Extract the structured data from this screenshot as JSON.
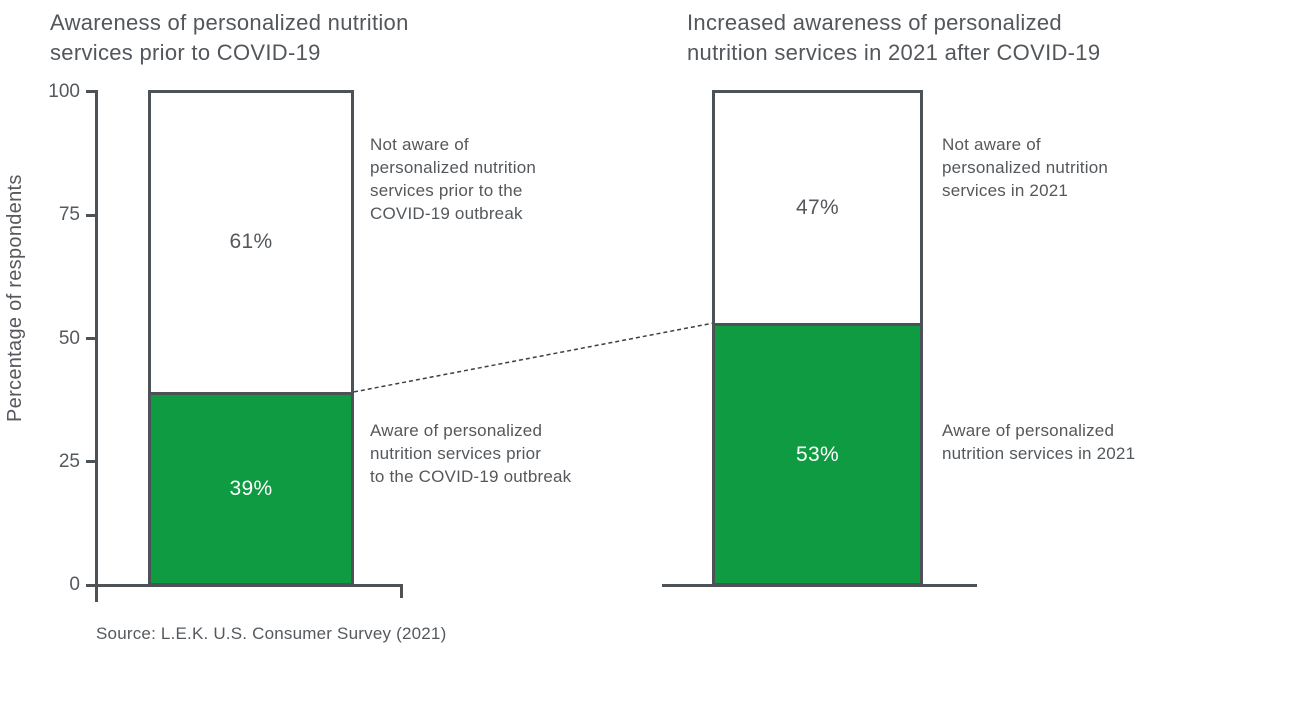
{
  "colors": {
    "aware_green": "#0f9b41",
    "bar_outline": "#4d5257",
    "text_gray": "#54585c",
    "not_aware_white": "#ffffff",
    "connector": "#3c3f42"
  },
  "y_axis": {
    "label": "Percentage of respondents",
    "ticks": [
      "100",
      "75",
      "50",
      "25",
      "0"
    ]
  },
  "left_chart": {
    "title_lines": [
      "Awareness of personalized nutrition",
      "services prior to COVID-19"
    ],
    "not_aware_value_label": "61%",
    "aware_value_label": "39%",
    "annotations": {
      "not_aware_lines": [
        "Not aware of",
        "personalized nutrition",
        "services prior to the",
        "COVID-19 outbreak"
      ],
      "aware_lines": [
        "Aware of personalized",
        "nutrition services prior",
        "to the COVID-19 outbreak"
      ]
    }
  },
  "right_chart": {
    "title_lines": [
      "Increased awareness of personalized",
      "nutrition services in 2021 after COVID-19"
    ],
    "not_aware_value_label": "47%",
    "aware_value_label": "53%",
    "annotations": {
      "not_aware_lines": [
        "Not aware of",
        "personalized nutrition",
        "services in 2021"
      ],
      "aware_lines": [
        "Aware of personalized",
        "nutrition services in 2021"
      ]
    }
  },
  "source": {
    "text": "Source: L.E.K. U.S. Consumer Survey (2021)"
  },
  "chart_data": {
    "type": "bar",
    "subtype": "stacked-100pct",
    "categories": [
      "Prior to COVID-19",
      "In 2021 after COVID-19"
    ],
    "series": [
      {
        "name": "Aware of personalized nutrition services",
        "values": [
          39,
          53
        ],
        "color": "#0f9b41"
      },
      {
        "name": "Not aware of personalized nutrition services",
        "values": [
          61,
          47
        ],
        "color": "#ffffff"
      }
    ],
    "titles": [
      "Awareness of personalized nutrition services prior to COVID-19",
      "Increased awareness of personalized nutrition services in 2021 after COVID-19"
    ],
    "xlabel": "",
    "ylabel": "Percentage of respondents",
    "ylim": [
      0,
      100
    ],
    "yticks": [
      0,
      25,
      50,
      75,
      100
    ],
    "grid": false,
    "legend": "inline annotations beside each bar",
    "annotations": {
      "connector": "dashed line linking 39% level of left bar to 53% level of right bar"
    },
    "source": "Source: L.E.K. U.S. Consumer Survey (2021)"
  }
}
